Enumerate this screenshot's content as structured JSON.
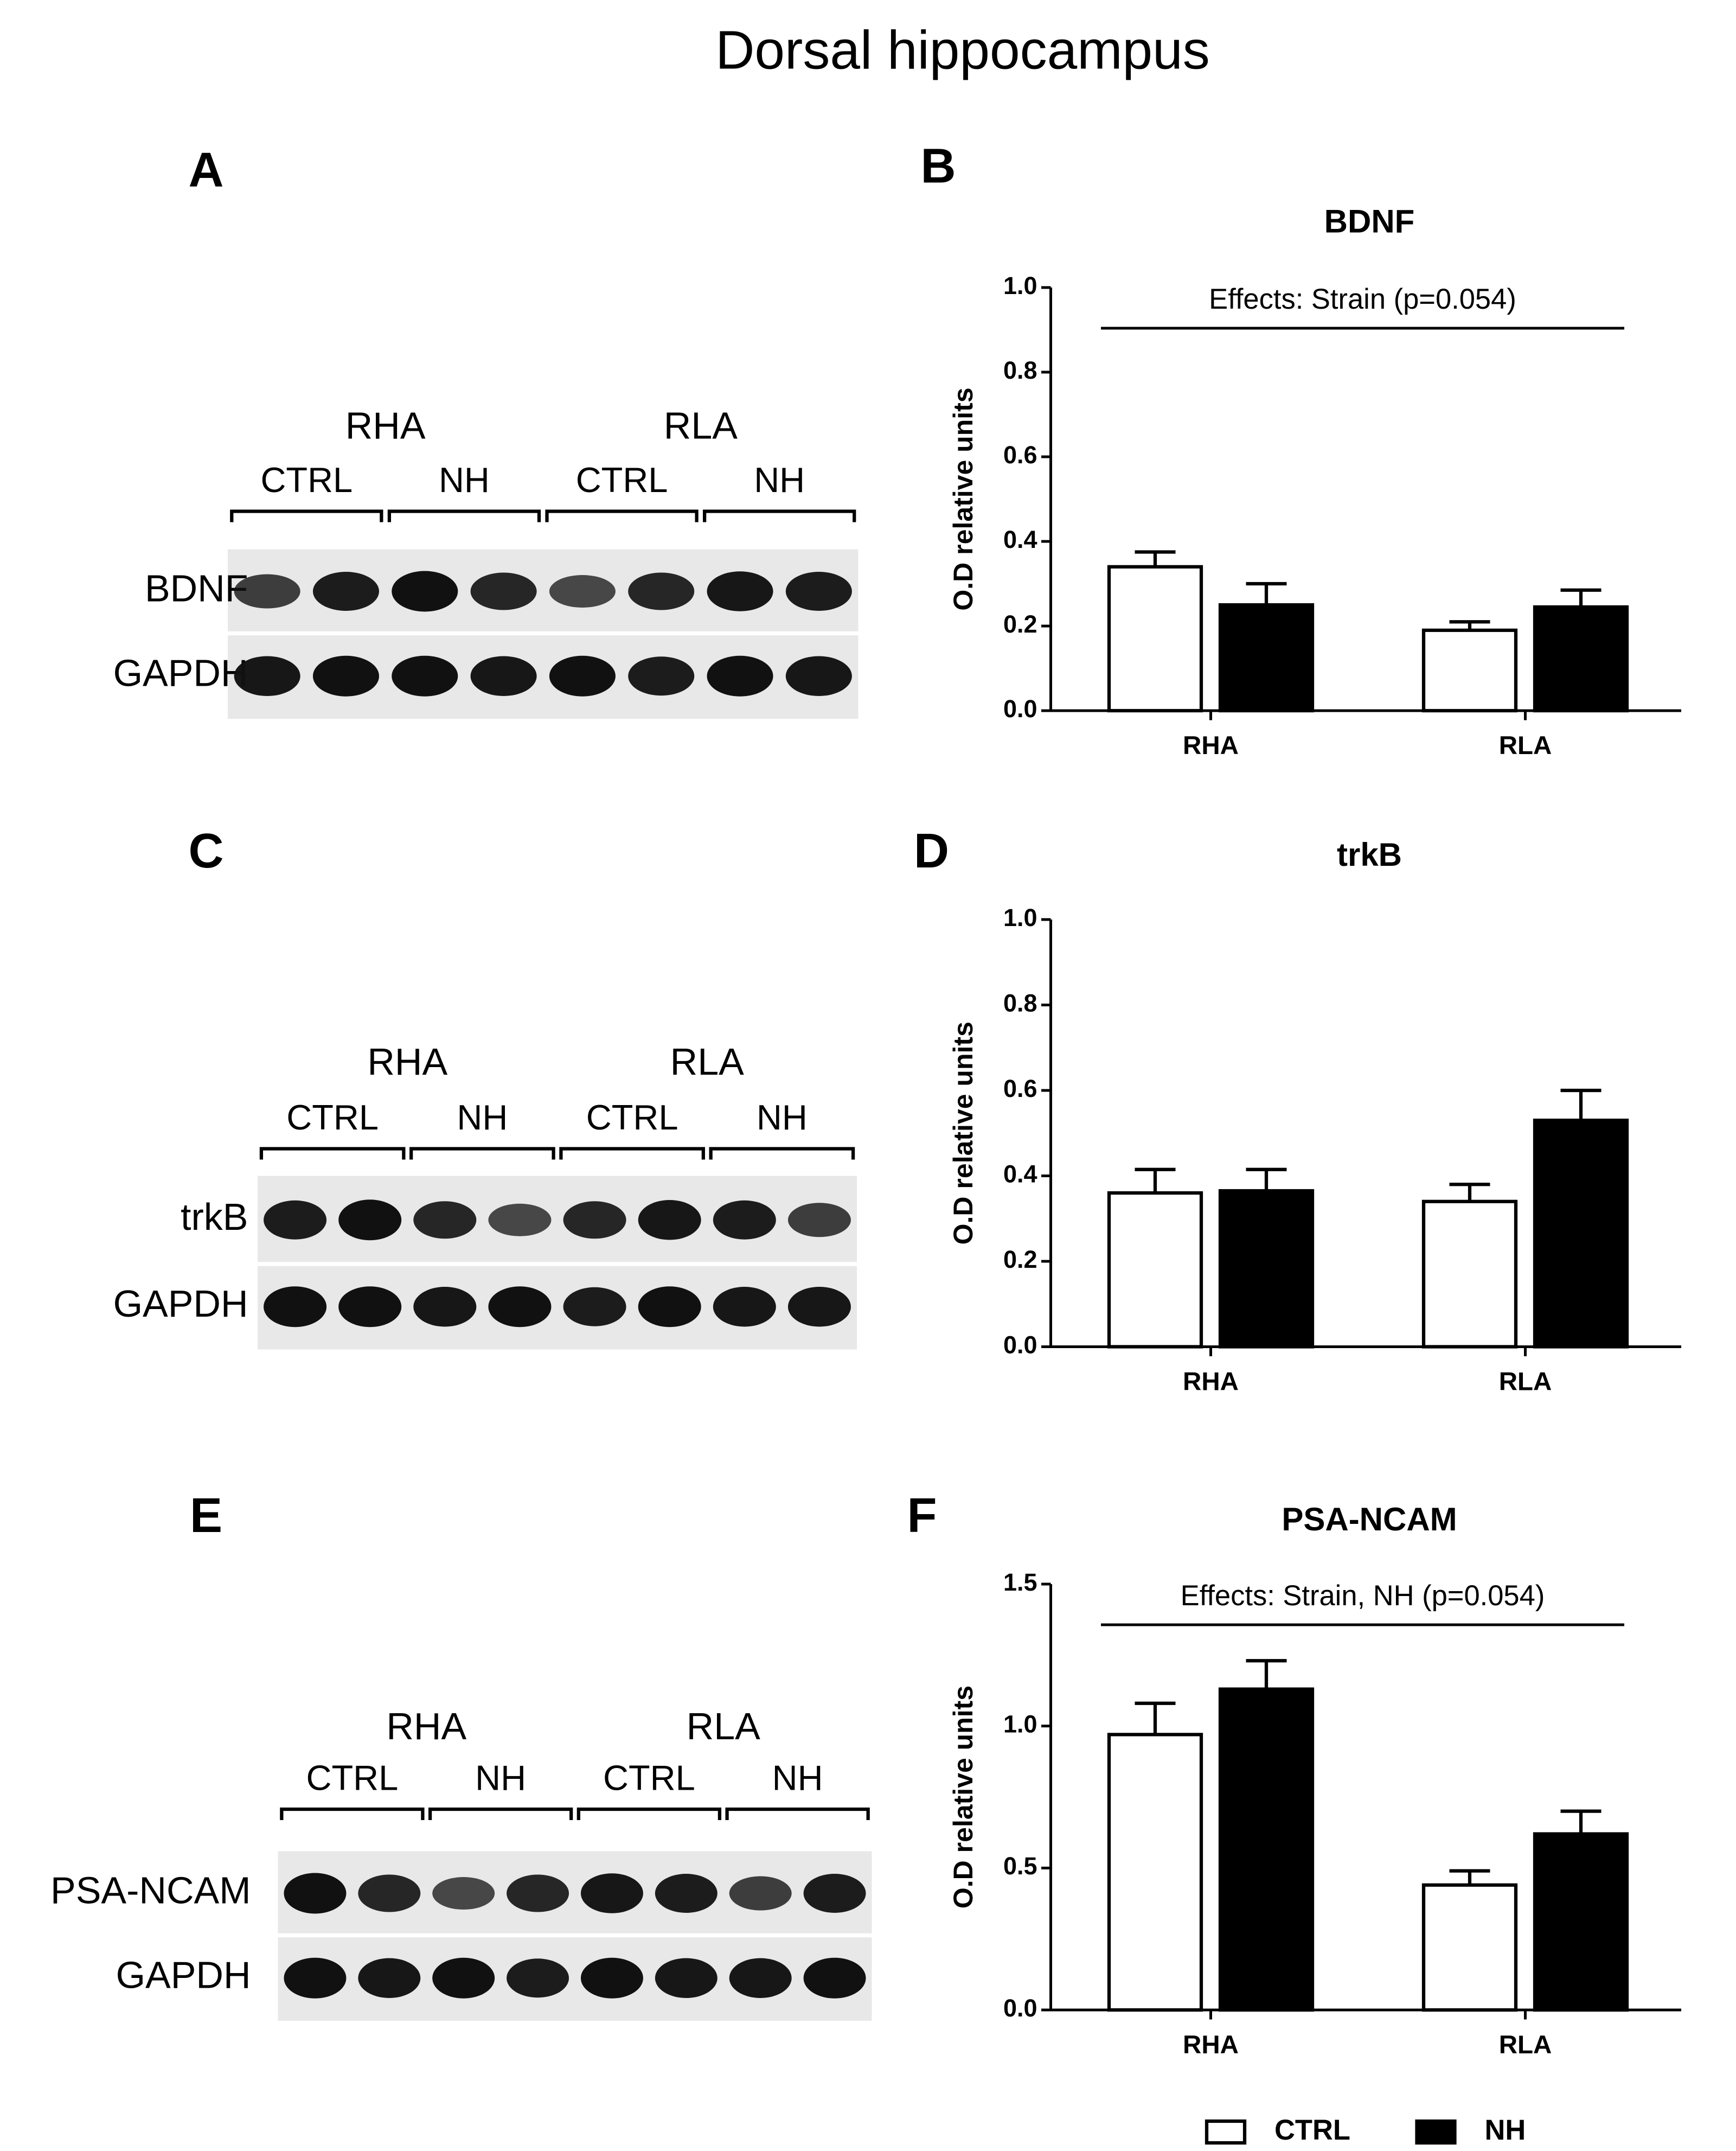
{
  "title": "Dorsal hippocampus",
  "blots": [
    {
      "panel": "A",
      "strains": [
        "RHA",
        "RLA"
      ],
      "groups": [
        "CTRL",
        "NH",
        "CTRL",
        "NH"
      ],
      "rows": [
        "BDNF",
        "GAPDH"
      ]
    },
    {
      "panel": "C",
      "strains": [
        "RHA",
        "RLA"
      ],
      "groups": [
        "CTRL",
        "NH",
        "CTRL",
        "NH"
      ],
      "rows": [
        "trkB",
        "GAPDH"
      ]
    },
    {
      "panel": "E",
      "strains": [
        "RHA",
        "RLA"
      ],
      "groups": [
        "CTRL",
        "NH",
        "CTRL",
        "NH"
      ],
      "rows": [
        "PSA-NCAM",
        "GAPDH"
      ]
    }
  ],
  "chart_data": [
    {
      "type": "bar",
      "panel": "B",
      "title": "BDNF",
      "y_label": "O.D relative units",
      "annotation": "Effects: Strain (p=0.054)",
      "categories": [
        "RHA",
        "RLA"
      ],
      "series": [
        {
          "color": "#ffffff",
          "values": [
            0.34,
            0.19
          ],
          "errors": [
            0.035,
            0.02
          ]
        },
        {
          "color": "#000000",
          "values": [
            0.25,
            0.245
          ],
          "errors": [
            0.05,
            0.04
          ]
        }
      ],
      "ylim": [
        0,
        1
      ],
      "yticks": [
        {
          "value": 0,
          "label": "0.0"
        },
        0.2,
        0.4,
        0.6,
        0.8,
        {
          "value": 1,
          "label": "1.0"
        }
      ]
    },
    {
      "type": "bar",
      "panel": "D",
      "title": "trkB",
      "y_label": "O.D relative units",
      "categories": [
        "RHA",
        "RLA"
      ],
      "series": [
        {
          "color": "#ffffff",
          "values": [
            0.36,
            0.34
          ],
          "errors": [
            0.055,
            0.04
          ]
        },
        {
          "color": "#000000",
          "values": [
            0.365,
            0.53
          ],
          "errors": [
            0.05,
            0.07
          ]
        }
      ],
      "ylim": [
        0,
        1
      ],
      "yticks": [
        {
          "value": 0,
          "label": "0.0"
        },
        0.2,
        0.4,
        0.6,
        0.8,
        {
          "value": 1,
          "label": "1.0"
        }
      ]
    },
    {
      "type": "bar",
      "panel": "F",
      "title": "PSA-NCAM",
      "y_label": "O.D relative units",
      "annotation": "Effects: Strain, NH (p=0.054)",
      "categories": [
        "RHA",
        "RLA"
      ],
      "series": [
        {
          "name": "CTRL",
          "color": "#ffffff",
          "values": [
            0.97,
            0.44
          ],
          "errors": [
            0.11,
            0.05
          ]
        },
        {
          "name": "NH",
          "color": "#000000",
          "values": [
            1.13,
            0.62
          ],
          "errors": [
            0.1,
            0.08
          ]
        }
      ],
      "ylim": [
        0,
        1.5
      ],
      "yticks": [
        {
          "value": 0,
          "label": "0.0"
        },
        0.5,
        {
          "value": 1,
          "label": "1.0"
        },
        {
          "value": 1.5,
          "label": "1.5"
        }
      ]
    }
  ]
}
